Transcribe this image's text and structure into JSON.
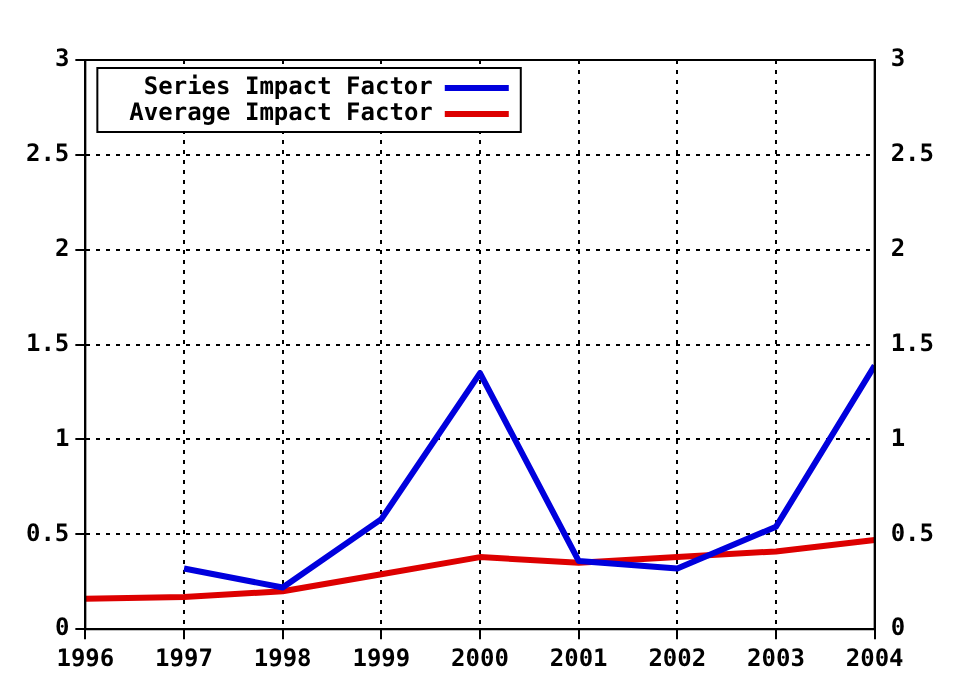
{
  "chart_data": {
    "type": "line",
    "x": [
      1996,
      1997,
      1998,
      1999,
      2000,
      2001,
      2002,
      2003,
      2004
    ],
    "series": [
      {
        "name": "Series Impact Factor",
        "color": "#0000dd",
        "values": [
          null,
          0.32,
          0.22,
          0.58,
          1.35,
          0.36,
          0.32,
          0.54,
          1.39
        ]
      },
      {
        "name": "Average Impact Factor",
        "color": "#dd0000",
        "values": [
          0.16,
          0.17,
          0.2,
          0.29,
          0.38,
          0.35,
          0.38,
          0.41,
          0.47
        ]
      }
    ],
    "xlim": [
      1996,
      2004
    ],
    "xticks": [
      1996,
      1997,
      1998,
      1999,
      2000,
      2001,
      2002,
      2003,
      2004
    ],
    "ylim": [
      0,
      3
    ],
    "yticks": [
      0,
      0.5,
      1,
      1.5,
      2,
      2.5,
      3
    ],
    "y2lim": [
      0,
      3
    ],
    "y2ticks": [
      0,
      0.5,
      1,
      1.5,
      2,
      2.5,
      3
    ],
    "grid": true,
    "legend": "top left",
    "marker": "none",
    "line_style": "solid"
  }
}
